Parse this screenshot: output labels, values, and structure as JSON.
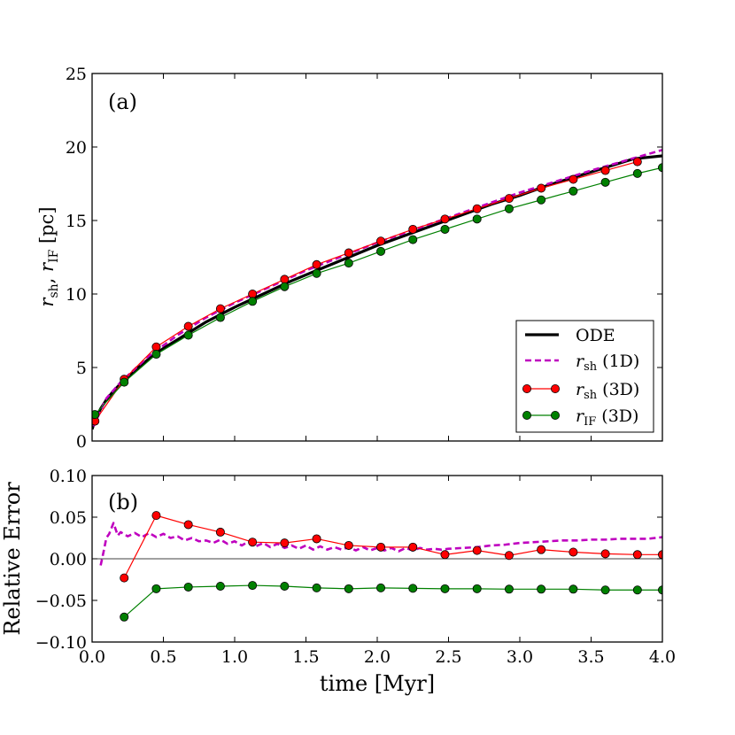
{
  "chart_data": [
    {
      "type": "line",
      "panel_label": "(a)",
      "xlabel": "",
      "ylabel": "r_sh, r_IF [pc]",
      "ylabel_parts": {
        "r1": "r",
        "sub1": "sh",
        "sep": ", ",
        "r2": "r",
        "sub2": "IF",
        "unit": " [pc]"
      },
      "xlim": [
        0.0,
        4.0
      ],
      "ylim": [
        0,
        25
      ],
      "yticks": [
        "0",
        "5",
        "10",
        "15",
        "20",
        "25"
      ],
      "legend_position": "lower-right",
      "series": [
        {
          "name": "ODE",
          "legend_label": "ODE",
          "style": "solid-thick",
          "color": "#000000",
          "x": [
            0.0,
            0.01,
            0.03,
            0.06,
            0.1,
            0.15,
            0.2,
            0.3,
            0.4,
            0.5,
            0.6,
            0.7,
            0.8,
            0.9,
            1.0,
            1.2,
            1.4,
            1.6,
            1.8,
            2.0,
            2.2,
            2.4,
            2.6,
            2.8,
            3.0,
            3.2,
            3.4,
            3.6,
            3.8,
            4.0
          ],
          "y": [
            0.8,
            1.1,
            1.6,
            2.2,
            2.8,
            3.4,
            3.9,
            4.8,
            5.6,
            6.3,
            6.9,
            7.5,
            8.1,
            8.6,
            9.1,
            10.0,
            10.9,
            11.7,
            12.5,
            13.3,
            14.0,
            14.7,
            15.4,
            16.1,
            16.7,
            17.4,
            18.0,
            18.6,
            19.2,
            19.4
          ]
        },
        {
          "name": "r_sh (1D)",
          "legend_sym": "r",
          "legend_sub": "sh",
          "legend_suffix": " (1D)",
          "style": "dashed",
          "color": "#bf00bf",
          "x": [
            0.01,
            0.1,
            0.2,
            0.4,
            0.6,
            0.8,
            1.0,
            1.5,
            2.0,
            2.5,
            3.0,
            3.5,
            4.0
          ],
          "y": [
            1.0,
            2.9,
            4.0,
            5.8,
            7.2,
            8.4,
            9.4,
            11.6,
            13.5,
            15.2,
            16.9,
            18.4,
            19.8
          ]
        },
        {
          "name": "r_sh (3D)",
          "legend_sym": "r",
          "legend_sub": "sh",
          "legend_suffix": " (3D)",
          "style": "marker",
          "color": "#ff0000",
          "x": [
            0.02,
            0.225,
            0.45,
            0.675,
            0.9,
            1.125,
            1.35,
            1.575,
            1.8,
            2.025,
            2.25,
            2.475,
            2.7,
            2.925,
            3.15,
            3.375,
            3.6,
            3.825
          ],
          "y": [
            1.35,
            4.2,
            6.4,
            7.8,
            9.0,
            10.0,
            11.0,
            12.0,
            12.8,
            13.6,
            14.4,
            15.1,
            15.8,
            16.5,
            17.2,
            17.8,
            18.4,
            19.0
          ]
        },
        {
          "name": "r_IF (3D)",
          "legend_sym": "r",
          "legend_sub": "IF",
          "legend_suffix": " (3D)",
          "style": "marker",
          "color": "#008000",
          "x": [
            0.02,
            0.225,
            0.45,
            0.675,
            0.9,
            1.125,
            1.35,
            1.575,
            1.8,
            2.025,
            2.25,
            2.475,
            2.7,
            2.925,
            3.15,
            3.375,
            3.6,
            3.825,
            4.0
          ],
          "y": [
            1.8,
            4.0,
            5.9,
            7.2,
            8.4,
            9.5,
            10.5,
            11.4,
            12.1,
            12.9,
            13.7,
            14.4,
            15.1,
            15.8,
            16.4,
            17.0,
            17.6,
            18.2,
            18.6
          ]
        }
      ]
    },
    {
      "type": "line",
      "panel_label": "(b)",
      "xlabel": "time [Myr]",
      "ylabel": "Relative Error",
      "xlim": [
        0.0,
        4.0
      ],
      "ylim": [
        -0.1,
        0.1
      ],
      "xticks": [
        "0.0",
        "0.5",
        "1.0",
        "1.5",
        "2.0",
        "2.5",
        "3.0",
        "3.5",
        "4.0"
      ],
      "yticks": [
        "−0.10",
        "−0.05",
        "0.00",
        "0.05",
        "0.10"
      ],
      "series": [
        {
          "name": "zero line",
          "style": "thin",
          "color": "#000000",
          "x": [
            0.0,
            4.0
          ],
          "y": [
            0.0,
            0.0
          ]
        },
        {
          "name": "r_sh (1D)",
          "style": "dashed",
          "color": "#bf00bf",
          "x": [
            0.06,
            0.08,
            0.1,
            0.12,
            0.15,
            0.18,
            0.2,
            0.25,
            0.3,
            0.35,
            0.4,
            0.45,
            0.5,
            0.55,
            0.6,
            0.65,
            0.7,
            0.75,
            0.8,
            0.85,
            0.9,
            0.95,
            1.0,
            1.05,
            1.1,
            1.15,
            1.2,
            1.25,
            1.3,
            1.35,
            1.4,
            1.45,
            1.5,
            1.55,
            1.6,
            1.65,
            1.7,
            1.75,
            1.8,
            1.85,
            1.9,
            1.95,
            2.0,
            2.05,
            2.1,
            2.15,
            2.2,
            2.25,
            2.3,
            2.35,
            2.4,
            2.45,
            2.5,
            2.6,
            2.7,
            2.8,
            2.9,
            3.0,
            3.1,
            3.2,
            3.3,
            3.4,
            3.5,
            3.6,
            3.7,
            3.8,
            3.9,
            4.0
          ],
          "y": [
            -0.008,
            0.008,
            0.025,
            0.03,
            0.043,
            0.028,
            0.032,
            0.027,
            0.031,
            0.026,
            0.031,
            0.026,
            0.03,
            0.025,
            0.027,
            0.022,
            0.025,
            0.021,
            0.022,
            0.019,
            0.023,
            0.018,
            0.021,
            0.016,
            0.021,
            0.015,
            0.019,
            0.014,
            0.018,
            0.013,
            0.016,
            0.012,
            0.016,
            0.011,
            0.015,
            0.011,
            0.014,
            0.011,
            0.014,
            0.01,
            0.014,
            0.01,
            0.013,
            0.01,
            0.013,
            0.009,
            0.013,
            0.01,
            0.013,
            0.011,
            0.012,
            0.011,
            0.012,
            0.013,
            0.014,
            0.016,
            0.017,
            0.019,
            0.02,
            0.021,
            0.022,
            0.022,
            0.023,
            0.023,
            0.024,
            0.024,
            0.024,
            0.026
          ]
        },
        {
          "name": "r_sh (3D)",
          "style": "marker",
          "color": "#ff0000",
          "x": [
            0.225,
            0.45,
            0.675,
            0.9,
            1.125,
            1.35,
            1.575,
            1.8,
            2.025,
            2.25,
            2.475,
            2.7,
            2.925,
            3.15,
            3.375,
            3.6,
            3.825,
            4.0
          ],
          "y": [
            -0.023,
            0.052,
            0.041,
            0.032,
            0.02,
            0.019,
            0.024,
            0.016,
            0.014,
            0.014,
            0.005,
            0.01,
            0.004,
            0.011,
            0.008,
            0.006,
            0.005,
            0.005
          ]
        },
        {
          "name": "r_IF (3D)",
          "style": "marker",
          "color": "#008000",
          "x": [
            0.225,
            0.45,
            0.675,
            0.9,
            1.125,
            1.35,
            1.575,
            1.8,
            2.025,
            2.25,
            2.475,
            2.7,
            2.925,
            3.15,
            3.375,
            3.6,
            3.825,
            4.0
          ],
          "y": [
            -0.07,
            -0.036,
            -0.034,
            -0.033,
            -0.032,
            -0.033,
            -0.035,
            -0.036,
            -0.035,
            -0.0355,
            -0.036,
            -0.036,
            -0.0365,
            -0.0365,
            -0.0365,
            -0.0375,
            -0.0375,
            -0.0375
          ]
        }
      ]
    }
  ]
}
